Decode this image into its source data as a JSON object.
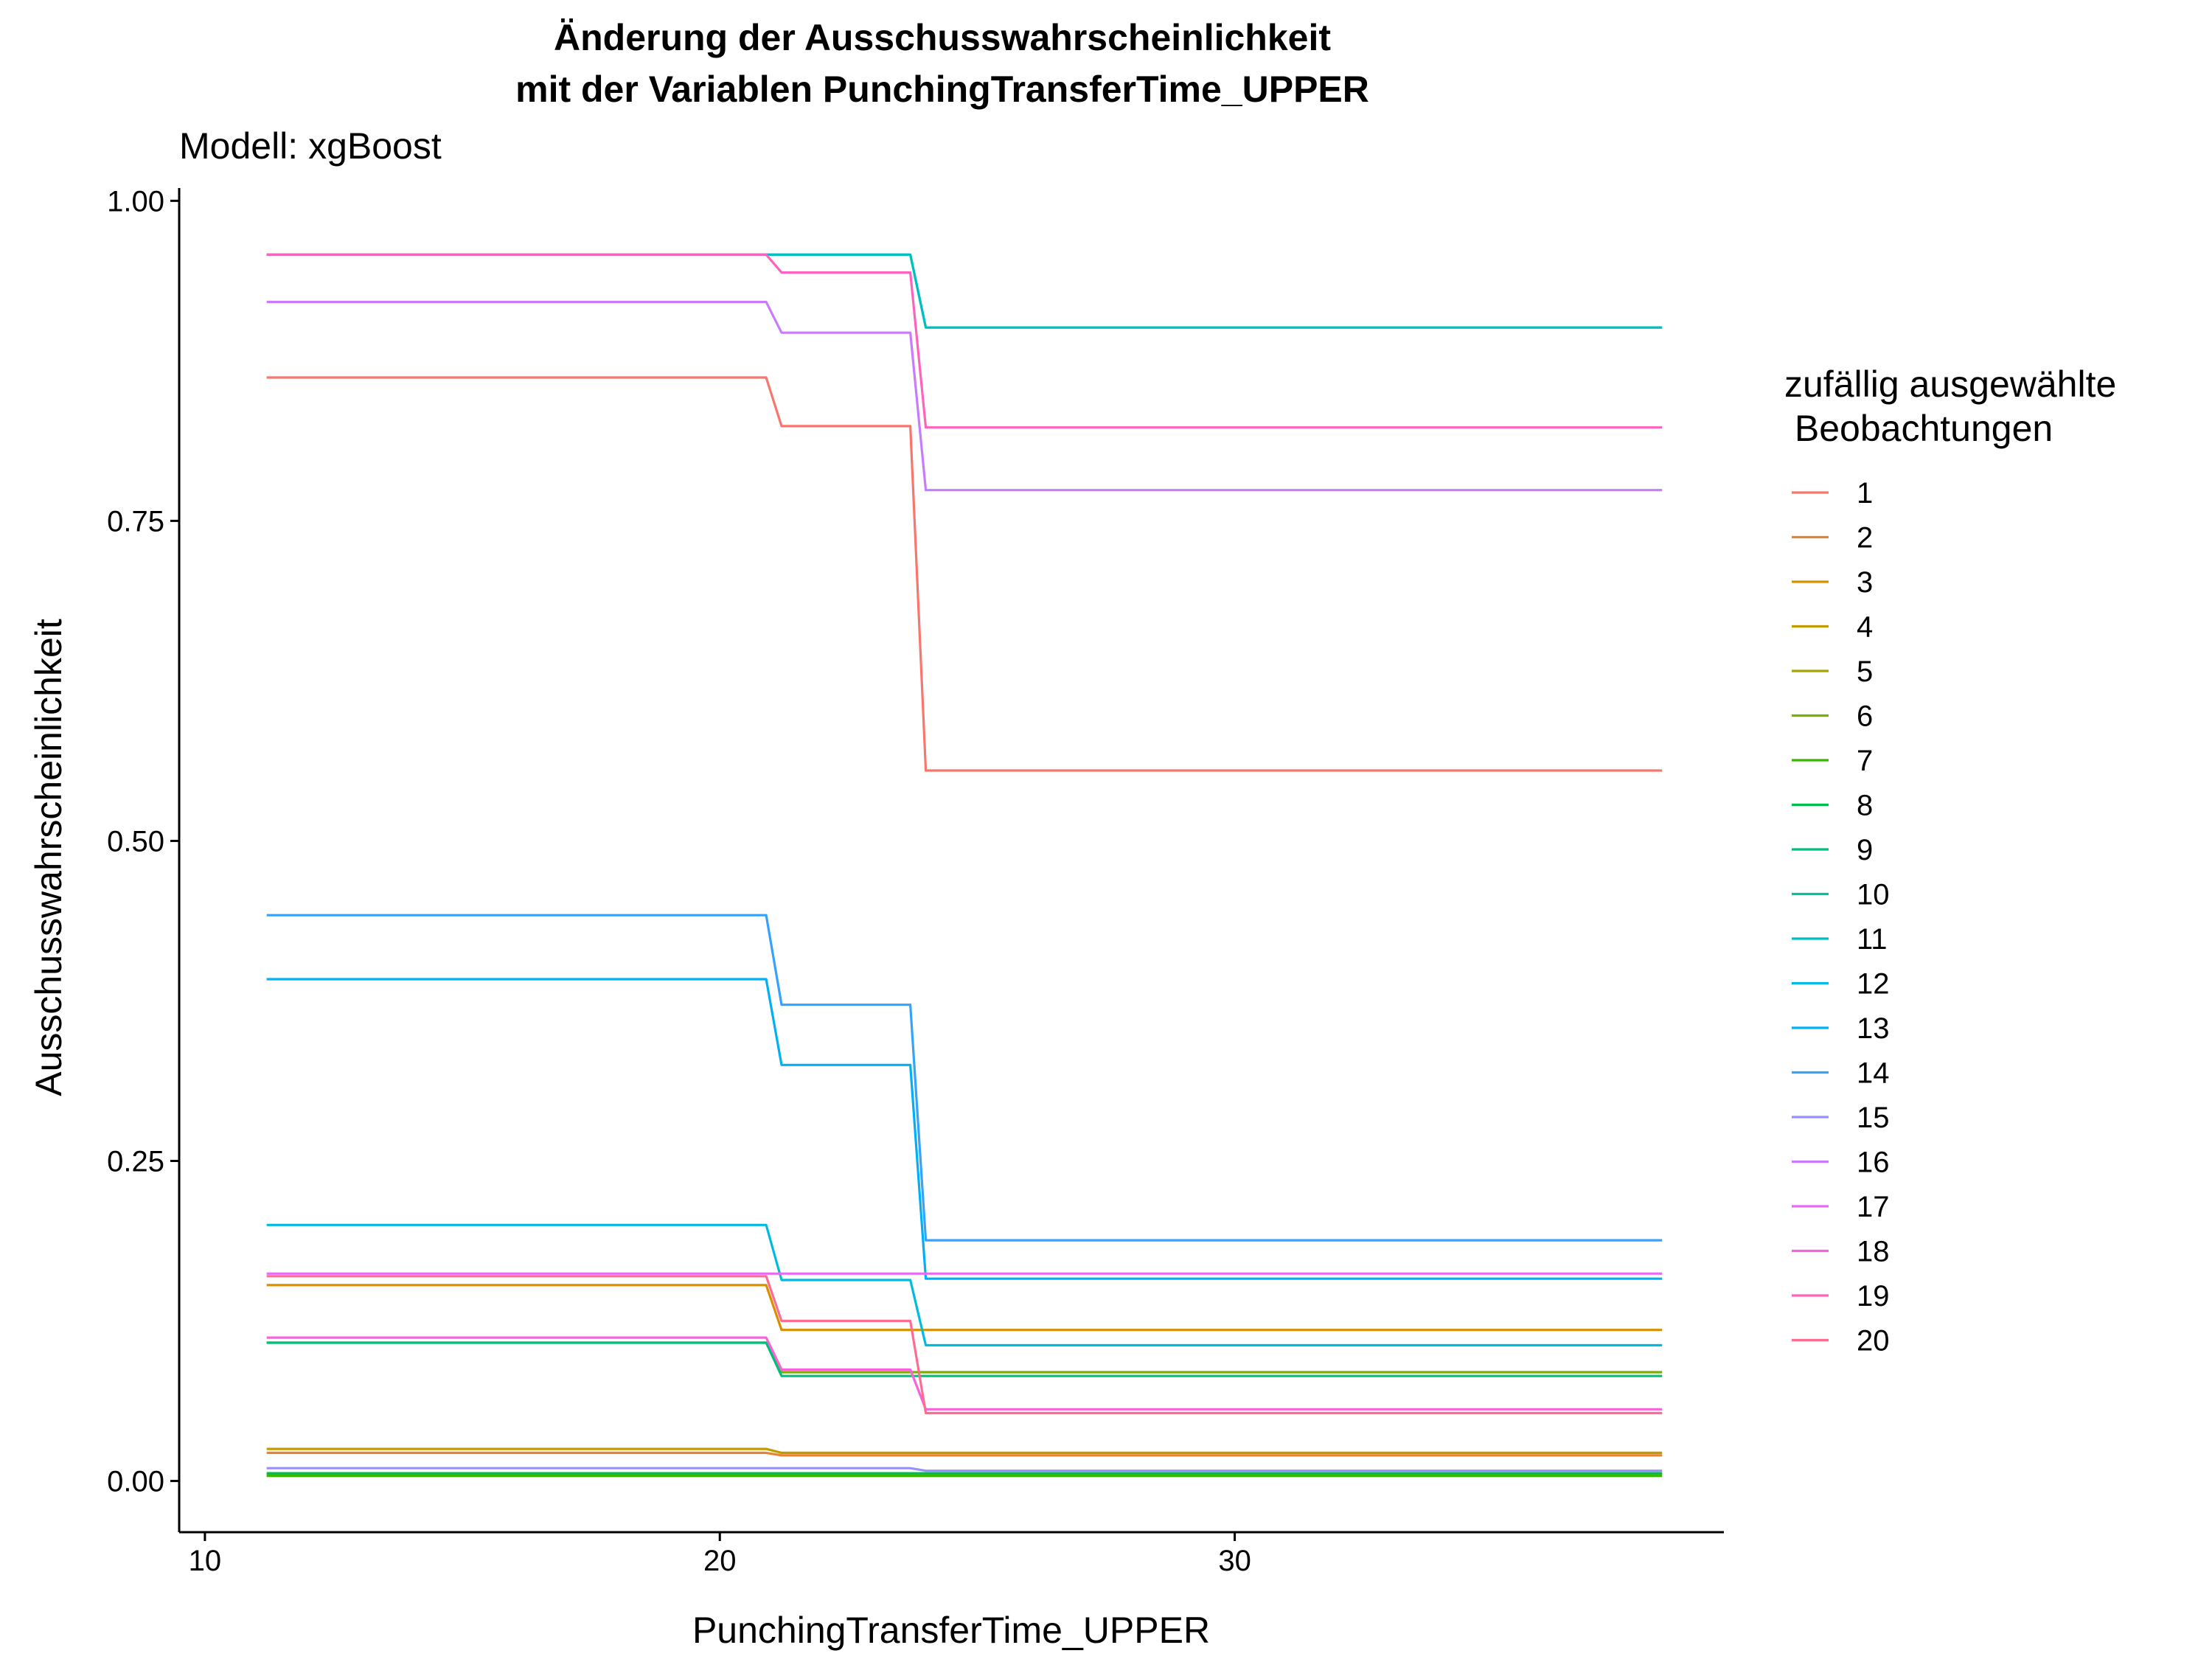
{
  "chart_data": {
    "type": "line",
    "title_line1": "Änderung der Ausschusswahrscheinlichkeit",
    "title_line2": "mit der Variablen PunchingTransferTime_UPPER",
    "subtitle": "Modell: xgBoost",
    "xlabel": "PunchingTransferTime_UPPER",
    "ylabel": "Ausschusswahrscheinlichkeit",
    "xlim": [
      9.5,
      39.5
    ],
    "ylim": [
      -0.04,
      1.01
    ],
    "x_ticks": [
      10,
      20,
      30
    ],
    "x_tick_labels": [
      "10",
      "20",
      "30"
    ],
    "y_ticks": [
      0,
      0.25,
      0.5,
      0.75,
      1.0
    ],
    "y_tick_labels": [
      "0.00",
      "0.25",
      "0.50",
      "0.75",
      "1.00"
    ],
    "grid": false,
    "legend_title_line1": "zufällig ausgewählte",
    "legend_title_line2": " Beobachtungen",
    "legend_position": "right",
    "x_breakpoints": [
      11.2,
      20.9,
      21.2,
      23.7,
      24.0,
      38.3
    ],
    "series": [
      {
        "name": "1",
        "color": "#F8766D",
        "values": [
          0.862,
          0.862,
          0.824,
          0.824,
          0.555,
          0.555
        ]
      },
      {
        "name": "2",
        "color": "#EA8331",
        "values": [
          0.022,
          0.022,
          0.02,
          0.02,
          0.02,
          0.02
        ]
      },
      {
        "name": "3",
        "color": "#D89000",
        "values": [
          0.153,
          0.153,
          0.118,
          0.118,
          0.118,
          0.118
        ]
      },
      {
        "name": "4",
        "color": "#C09B00",
        "values": [
          0.025,
          0.025,
          0.022,
          0.022,
          0.022,
          0.022
        ]
      },
      {
        "name": "5",
        "color": "#A3A500",
        "values": [
          0.005,
          0.005,
          0.005,
          0.005,
          0.005,
          0.005
        ]
      },
      {
        "name": "6",
        "color": "#7CAE00",
        "values": [
          0.108,
          0.108,
          0.085,
          0.085,
          0.085,
          0.085
        ]
      },
      {
        "name": "7",
        "color": "#39B600",
        "values": [
          0.004,
          0.004,
          0.004,
          0.004,
          0.004,
          0.004
        ]
      },
      {
        "name": "8",
        "color": "#00BB4E",
        "values": [
          0.006,
          0.006,
          0.006,
          0.006,
          0.006,
          0.006
        ]
      },
      {
        "name": "9",
        "color": "#00BF7D",
        "values": [
          0.108,
          0.108,
          0.082,
          0.082,
          0.082,
          0.082
        ]
      },
      {
        "name": "10",
        "color": "#00C1A3",
        "values": [
          0.958,
          0.958,
          0.958,
          0.958,
          0.901,
          0.901
        ]
      },
      {
        "name": "11",
        "color": "#00BFC4",
        "values": [
          0.958,
          0.958,
          0.958,
          0.958,
          0.901,
          0.901
        ]
      },
      {
        "name": "12",
        "color": "#00BAE0",
        "values": [
          0.2,
          0.2,
          0.157,
          0.157,
          0.106,
          0.106
        ]
      },
      {
        "name": "13",
        "color": "#00B0F6",
        "values": [
          0.392,
          0.392,
          0.325,
          0.325,
          0.158,
          0.158
        ]
      },
      {
        "name": "14",
        "color": "#35A2FF",
        "values": [
          0.442,
          0.442,
          0.372,
          0.372,
          0.188,
          0.188
        ]
      },
      {
        "name": "15",
        "color": "#9590FF",
        "values": [
          0.01,
          0.01,
          0.01,
          0.01,
          0.008,
          0.008
        ]
      },
      {
        "name": "16",
        "color": "#C77CFF",
        "values": [
          0.921,
          0.921,
          0.897,
          0.897,
          0.774,
          0.774
        ]
      },
      {
        "name": "17",
        "color": "#E76BF3",
        "values": [
          0.162,
          0.162,
          0.162,
          0.162,
          0.162,
          0.162
        ]
      },
      {
        "name": "18",
        "color": "#FA62DB",
        "values": [
          0.112,
          0.112,
          0.087,
          0.087,
          0.056,
          0.056
        ]
      },
      {
        "name": "19",
        "color": "#FF62BC",
        "values": [
          0.958,
          0.958,
          0.944,
          0.944,
          0.823,
          0.823
        ]
      },
      {
        "name": "20",
        "color": "#FF6C91",
        "values": [
          0.16,
          0.16,
          0.125,
          0.125,
          0.053,
          0.053
        ]
      }
    ]
  }
}
